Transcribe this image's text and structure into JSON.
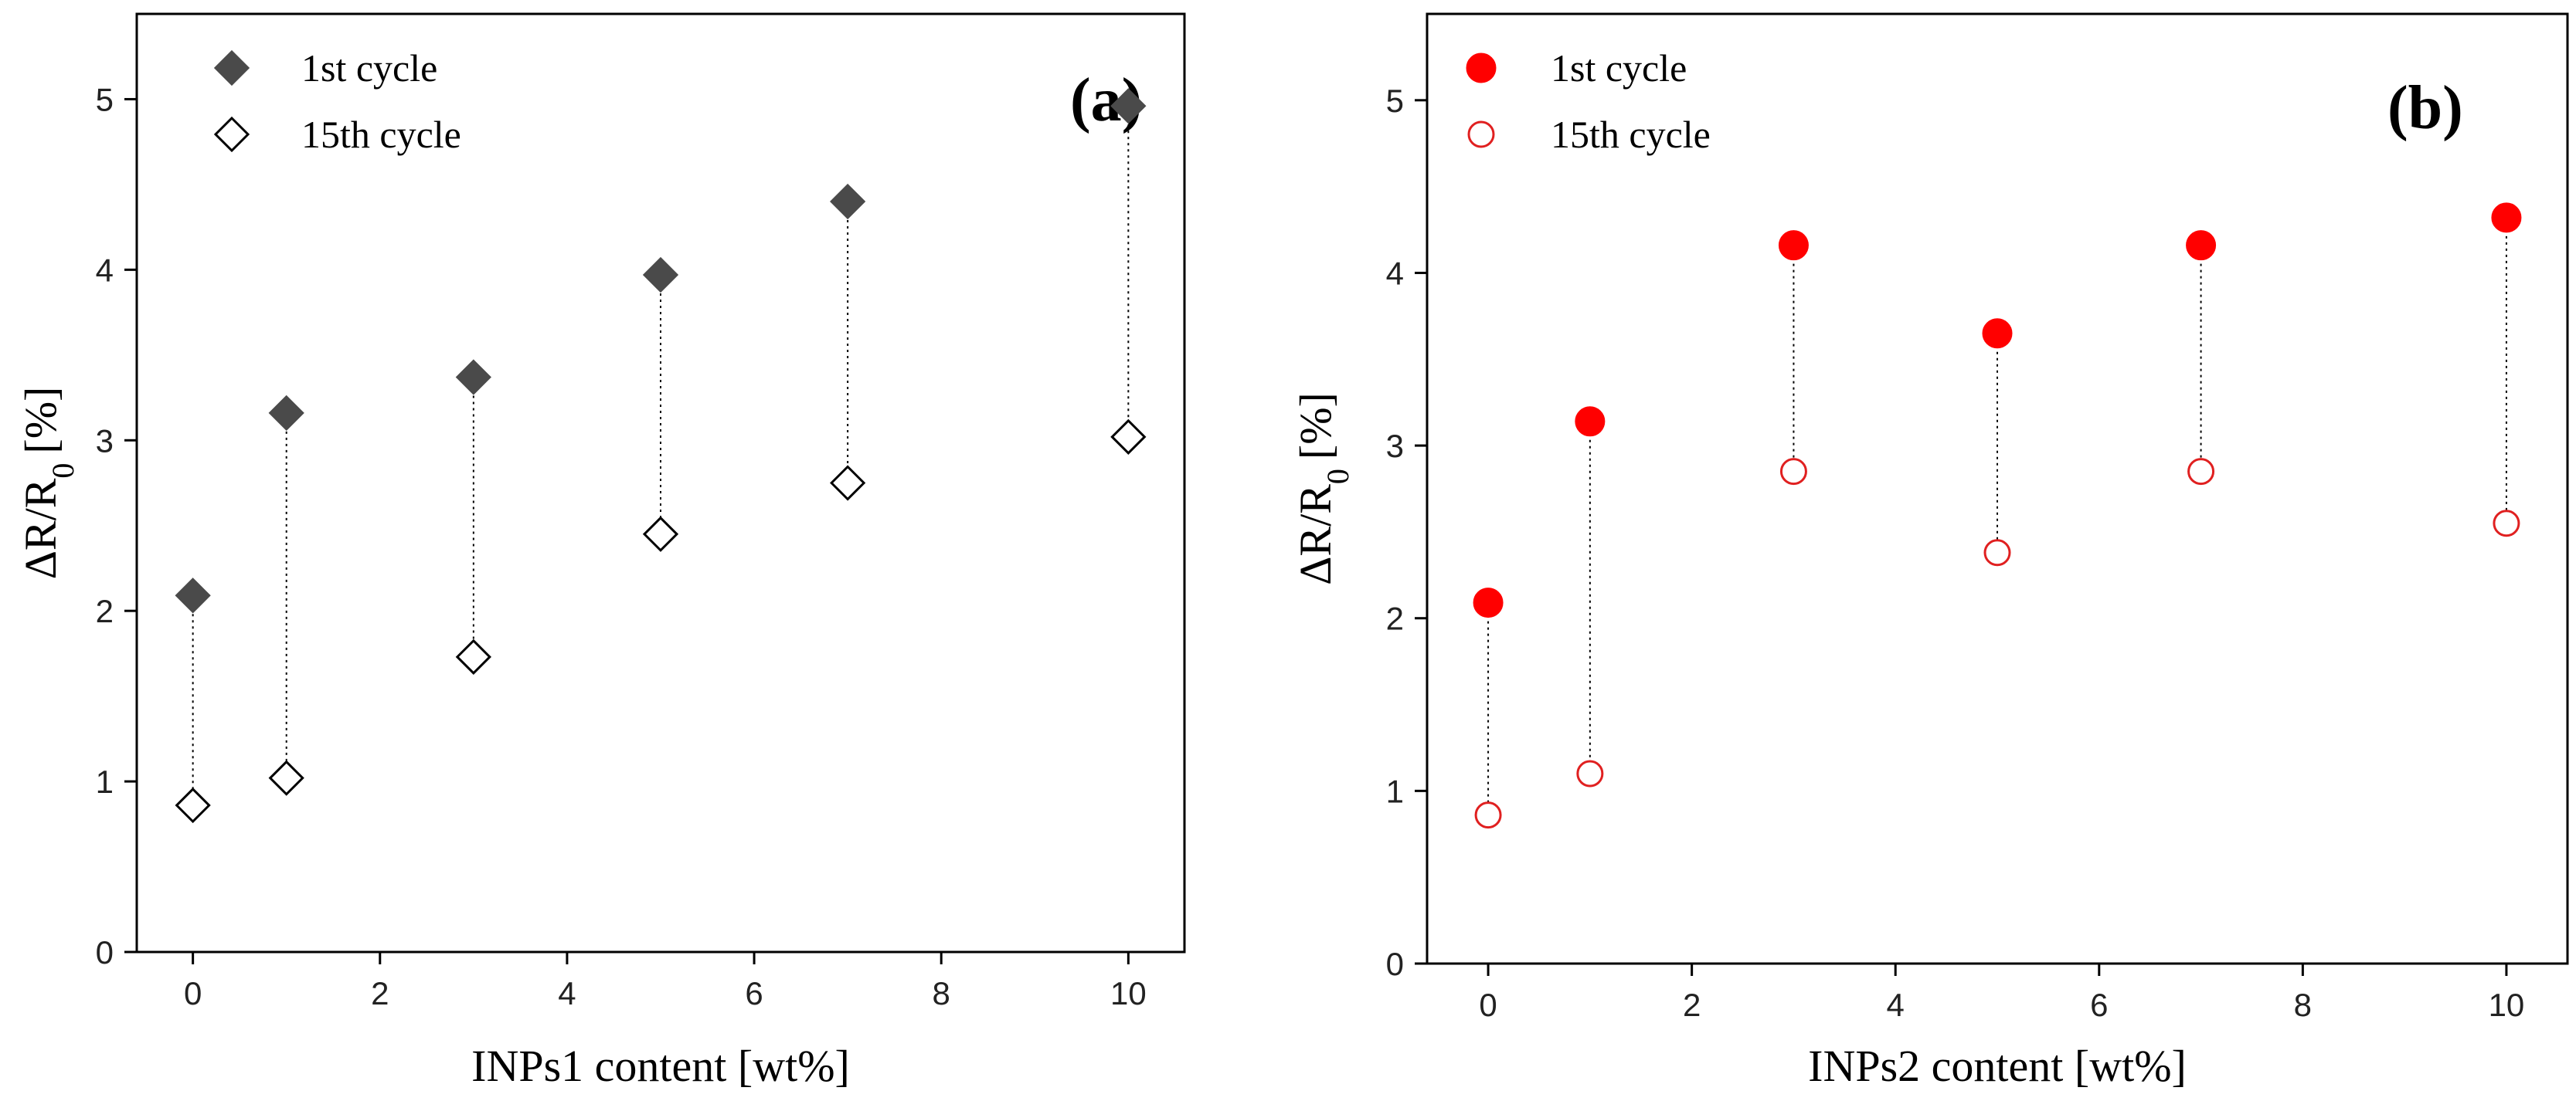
{
  "figure_title": "",
  "chart_data": [
    {
      "type": "scatter",
      "panel_label": "(a)",
      "title": "",
      "xlabel": "INPs1 content [wt%]",
      "ylabel_main": "ΔR/R",
      "ylabel_sub": "0",
      "ylabel_unit": "[%]",
      "xlim": [
        -0.6,
        10.6
      ],
      "ylim": [
        0,
        5.5
      ],
      "xticks": [
        0,
        2,
        4,
        6,
        8,
        10
      ],
      "yticks": [
        0,
        1,
        2,
        3,
        4,
        5
      ],
      "grid": false,
      "legend_position": "top-left",
      "connectors": "dotted vertical lines between cycles",
      "x": [
        0,
        1,
        3,
        5,
        7,
        10
      ],
      "series": [
        {
          "name": "1st cycle",
          "marker": "diamond",
          "filled": true,
          "color": "#4a4a4a",
          "values": [
            2.09,
            3.16,
            3.37,
            3.97,
            4.4,
            4.96
          ]
        },
        {
          "name": "15th cycle",
          "marker": "diamond",
          "filled": false,
          "color": "#000000",
          "values": [
            0.86,
            1.02,
            1.73,
            2.45,
            2.75,
            3.02
          ]
        }
      ]
    },
    {
      "type": "scatter",
      "panel_label": "(b)",
      "title": "",
      "xlabel": "INPs2 content [wt%]",
      "ylabel_main": "ΔR/R",
      "ylabel_sub": "0",
      "ylabel_unit": "[%]",
      "xlim": [
        -0.6,
        10.6
      ],
      "ylim": [
        0,
        5.5
      ],
      "xticks": [
        0,
        2,
        4,
        6,
        8,
        10
      ],
      "yticks": [
        0,
        1,
        2,
        3,
        4,
        5
      ],
      "grid": false,
      "legend_position": "top-left",
      "connectors": "dotted vertical lines between cycles",
      "x": [
        0,
        1,
        3,
        5,
        7,
        10
      ],
      "series": [
        {
          "name": "1st cycle",
          "marker": "circle",
          "filled": true,
          "color": "#ff0000",
          "values": [
            2.09,
            3.14,
            4.16,
            3.65,
            4.16,
            4.32
          ]
        },
        {
          "name": "15th cycle",
          "marker": "circle",
          "filled": false,
          "color": "#e02020",
          "values": [
            0.86,
            1.1,
            2.85,
            2.38,
            2.85,
            2.55
          ]
        }
      ]
    }
  ]
}
